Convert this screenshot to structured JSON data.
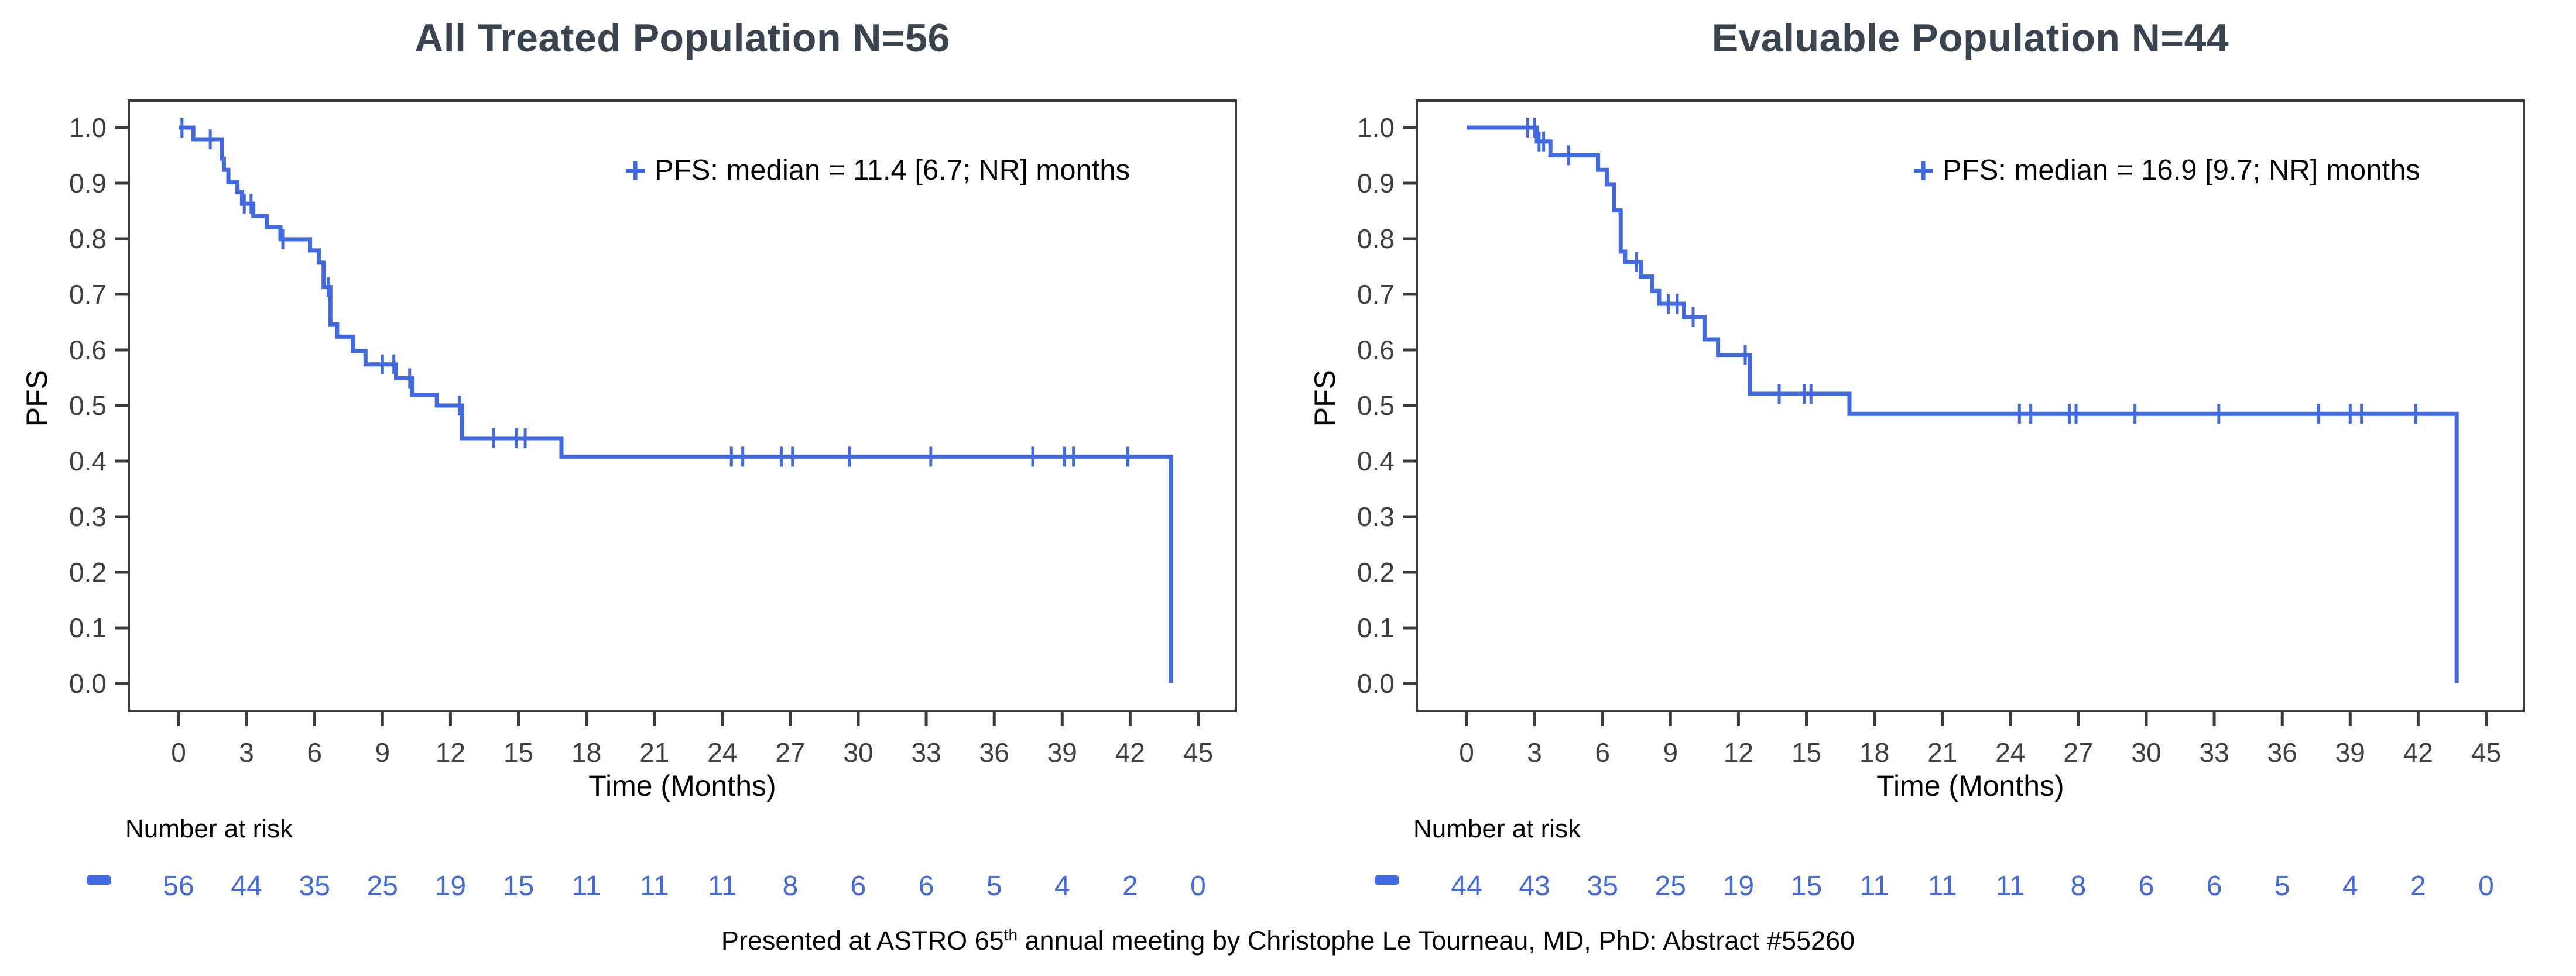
{
  "colors": {
    "curve": "#4169E1",
    "title": "#3A4350",
    "axis": "#3B3B3B",
    "tick_label": "#3F3F3F",
    "text": "#000000"
  },
  "axes": {
    "xlabel": "Time (Months)",
    "ylabel": "PFS",
    "x_ticks": [
      0,
      3,
      6,
      9,
      12,
      15,
      18,
      21,
      24,
      27,
      30,
      33,
      36,
      39,
      42,
      45
    ],
    "y_tick_labels": [
      "1.0",
      "0.9",
      "0.8",
      "0.7",
      "0.6",
      "0.5",
      "0.4",
      "0.3",
      "0.2",
      "0.1",
      "0.0"
    ],
    "xlim": [
      -2.2,
      46.7
    ],
    "ylim": [
      0.0,
      1.05
    ],
    "grid": "off",
    "legend_position": "top-right-inside"
  },
  "risk": {
    "label": "Number at risk"
  },
  "footer": {
    "pre": "Presented at ASTRO 65",
    "sup": "th",
    "post": " annual meeting by Christophe Le Tourneau, MD, PhD: Abstract #55260"
  },
  "chart_data": [
    {
      "type": "line",
      "subtype": "kaplan_meier_step",
      "title": "All Treated Population N=56",
      "legend_label": "PFS: median = 11.4 [6.7; NR] months",
      "median_months": 11.4,
      "ci": "[6.7; NR]",
      "steps": [
        [
          0,
          1.0
        ],
        [
          0.65,
          0.979
        ],
        [
          1.9,
          0.944
        ],
        [
          2.0,
          0.924
        ],
        [
          2.2,
          0.902
        ],
        [
          2.6,
          0.884
        ],
        [
          2.8,
          0.863
        ],
        [
          3.3,
          0.841
        ],
        [
          3.9,
          0.821
        ],
        [
          4.5,
          0.799
        ],
        [
          5.8,
          0.779
        ],
        [
          6.2,
          0.757
        ],
        [
          6.4,
          0.713
        ],
        [
          6.7,
          0.646
        ],
        [
          7.0,
          0.624
        ],
        [
          7.7,
          0.598
        ],
        [
          8.25,
          0.574
        ],
        [
          9.6,
          0.549
        ],
        [
          10.3,
          0.519
        ],
        [
          11.4,
          0.5
        ],
        [
          12.5,
          0.441
        ],
        [
          16.9,
          0.408
        ]
      ],
      "drop_to_zero_at": 43.8,
      "censor_times": [
        0.15,
        1.4,
        2.9,
        3.2,
        4.6,
        6.6,
        9.0,
        9.5,
        10.2,
        12.4,
        13.9,
        14.9,
        15.3,
        24.4,
        24.9,
        26.6,
        27.1,
        29.6,
        33.2,
        37.7,
        39.1,
        39.5,
        41.9
      ],
      "number_at_risk": [
        56,
        44,
        35,
        25,
        19,
        15,
        11,
        11,
        11,
        8,
        6,
        6,
        5,
        4,
        2,
        0
      ]
    },
    {
      "type": "line",
      "subtype": "kaplan_meier_step",
      "title": "Evaluable Population N=44",
      "legend_label": "PFS: median = 16.9 [9.7; NR] months",
      "median_months": 16.9,
      "ci": "[9.7; NR]",
      "steps": [
        [
          0,
          1.0
        ],
        [
          3.1,
          0.975
        ],
        [
          3.7,
          0.95
        ],
        [
          5.8,
          0.924
        ],
        [
          6.2,
          0.898
        ],
        [
          6.5,
          0.851
        ],
        [
          6.8,
          0.777
        ],
        [
          7.0,
          0.758
        ],
        [
          7.7,
          0.732
        ],
        [
          8.2,
          0.706
        ],
        [
          8.5,
          0.683
        ],
        [
          9.6,
          0.659
        ],
        [
          10.5,
          0.619
        ],
        [
          11.1,
          0.591
        ],
        [
          12.5,
          0.521
        ],
        [
          16.9,
          0.485
        ]
      ],
      "drop_to_zero_at": 43.7,
      "censor_times": [
        2.7,
        3.0,
        3.2,
        3.4,
        4.5,
        7.5,
        8.9,
        9.3,
        10.0,
        12.3,
        13.8,
        14.9,
        15.2,
        24.4,
        24.9,
        26.6,
        26.9,
        29.5,
        33.2,
        37.6,
        39.0,
        39.5,
        41.9
      ],
      "number_at_risk": [
        44,
        43,
        35,
        25,
        19,
        15,
        11,
        11,
        11,
        8,
        6,
        6,
        5,
        4,
        2,
        0
      ]
    }
  ]
}
